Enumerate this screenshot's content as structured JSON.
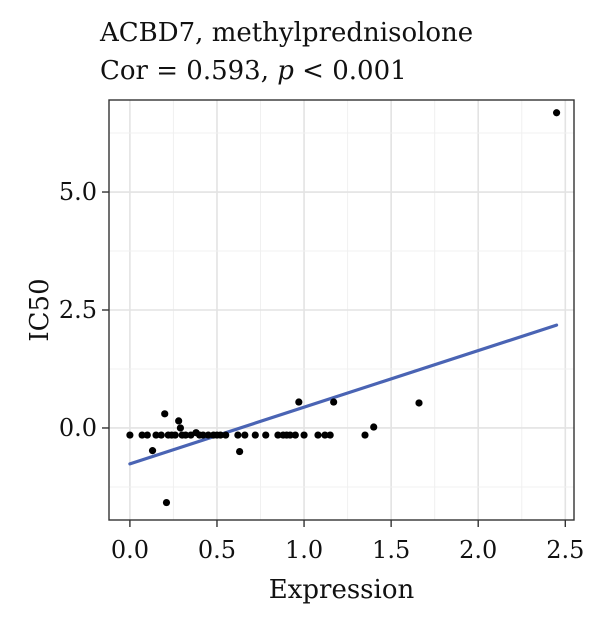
{
  "chart_data": {
    "type": "scatter",
    "title": "ACBD7, methylprednisolone",
    "subtitle_prefix": "Cor = 0.593, ",
    "subtitle_p": "p",
    "subtitle_suffix": " < 0.001",
    "xlabel": "Expression",
    "ylabel": "IC50",
    "xlim": [
      -0.12,
      2.55
    ],
    "ylim": [
      -1.95,
      6.95
    ],
    "x_ticks": [
      0.0,
      0.5,
      1.0,
      1.5,
      2.0,
      2.5
    ],
    "x_tick_labels": [
      "0.0",
      "0.5",
      "1.0",
      "1.5",
      "2.0",
      "2.5"
    ],
    "y_ticks": [
      0.0,
      2.5,
      5.0
    ],
    "y_tick_labels": [
      "0.0",
      "2.5",
      "5.0"
    ],
    "grid": true,
    "point_color": "#000000",
    "line_color": "#4a64b4",
    "fit_line": {
      "x": [
        0.0,
        2.45
      ],
      "y": [
        -0.76,
        2.18
      ]
    },
    "points": [
      {
        "x": 0.0,
        "y": -0.15
      },
      {
        "x": 0.07,
        "y": -0.15
      },
      {
        "x": 0.1,
        "y": -0.15
      },
      {
        "x": 0.13,
        "y": -0.48
      },
      {
        "x": 0.15,
        "y": -0.15
      },
      {
        "x": 0.18,
        "y": -0.15
      },
      {
        "x": 0.2,
        "y": 0.3
      },
      {
        "x": 0.21,
        "y": -1.58
      },
      {
        "x": 0.22,
        "y": -0.15
      },
      {
        "x": 0.24,
        "y": -0.15
      },
      {
        "x": 0.26,
        "y": -0.15
      },
      {
        "x": 0.28,
        "y": 0.15
      },
      {
        "x": 0.29,
        "y": 0.0
      },
      {
        "x": 0.3,
        "y": -0.15
      },
      {
        "x": 0.32,
        "y": -0.15
      },
      {
        "x": 0.35,
        "y": -0.15
      },
      {
        "x": 0.38,
        "y": -0.1
      },
      {
        "x": 0.4,
        "y": -0.15
      },
      {
        "x": 0.42,
        "y": -0.15
      },
      {
        "x": 0.45,
        "y": -0.15
      },
      {
        "x": 0.48,
        "y": -0.15
      },
      {
        "x": 0.5,
        "y": -0.15
      },
      {
        "x": 0.52,
        "y": -0.15
      },
      {
        "x": 0.55,
        "y": -0.15
      },
      {
        "x": 0.62,
        "y": -0.15
      },
      {
        "x": 0.63,
        "y": -0.5
      },
      {
        "x": 0.66,
        "y": -0.15
      },
      {
        "x": 0.72,
        "y": -0.15
      },
      {
        "x": 0.78,
        "y": -0.15
      },
      {
        "x": 0.85,
        "y": -0.15
      },
      {
        "x": 0.88,
        "y": -0.15
      },
      {
        "x": 0.9,
        "y": -0.15
      },
      {
        "x": 0.92,
        "y": -0.15
      },
      {
        "x": 0.95,
        "y": -0.15
      },
      {
        "x": 0.97,
        "y": 0.55
      },
      {
        "x": 1.0,
        "y": -0.15
      },
      {
        "x": 1.08,
        "y": -0.15
      },
      {
        "x": 1.12,
        "y": -0.15
      },
      {
        "x": 1.15,
        "y": -0.15
      },
      {
        "x": 1.17,
        "y": 0.55
      },
      {
        "x": 1.35,
        "y": -0.15
      },
      {
        "x": 1.4,
        "y": 0.02
      },
      {
        "x": 1.66,
        "y": 0.53
      },
      {
        "x": 2.45,
        "y": 6.68
      }
    ]
  }
}
